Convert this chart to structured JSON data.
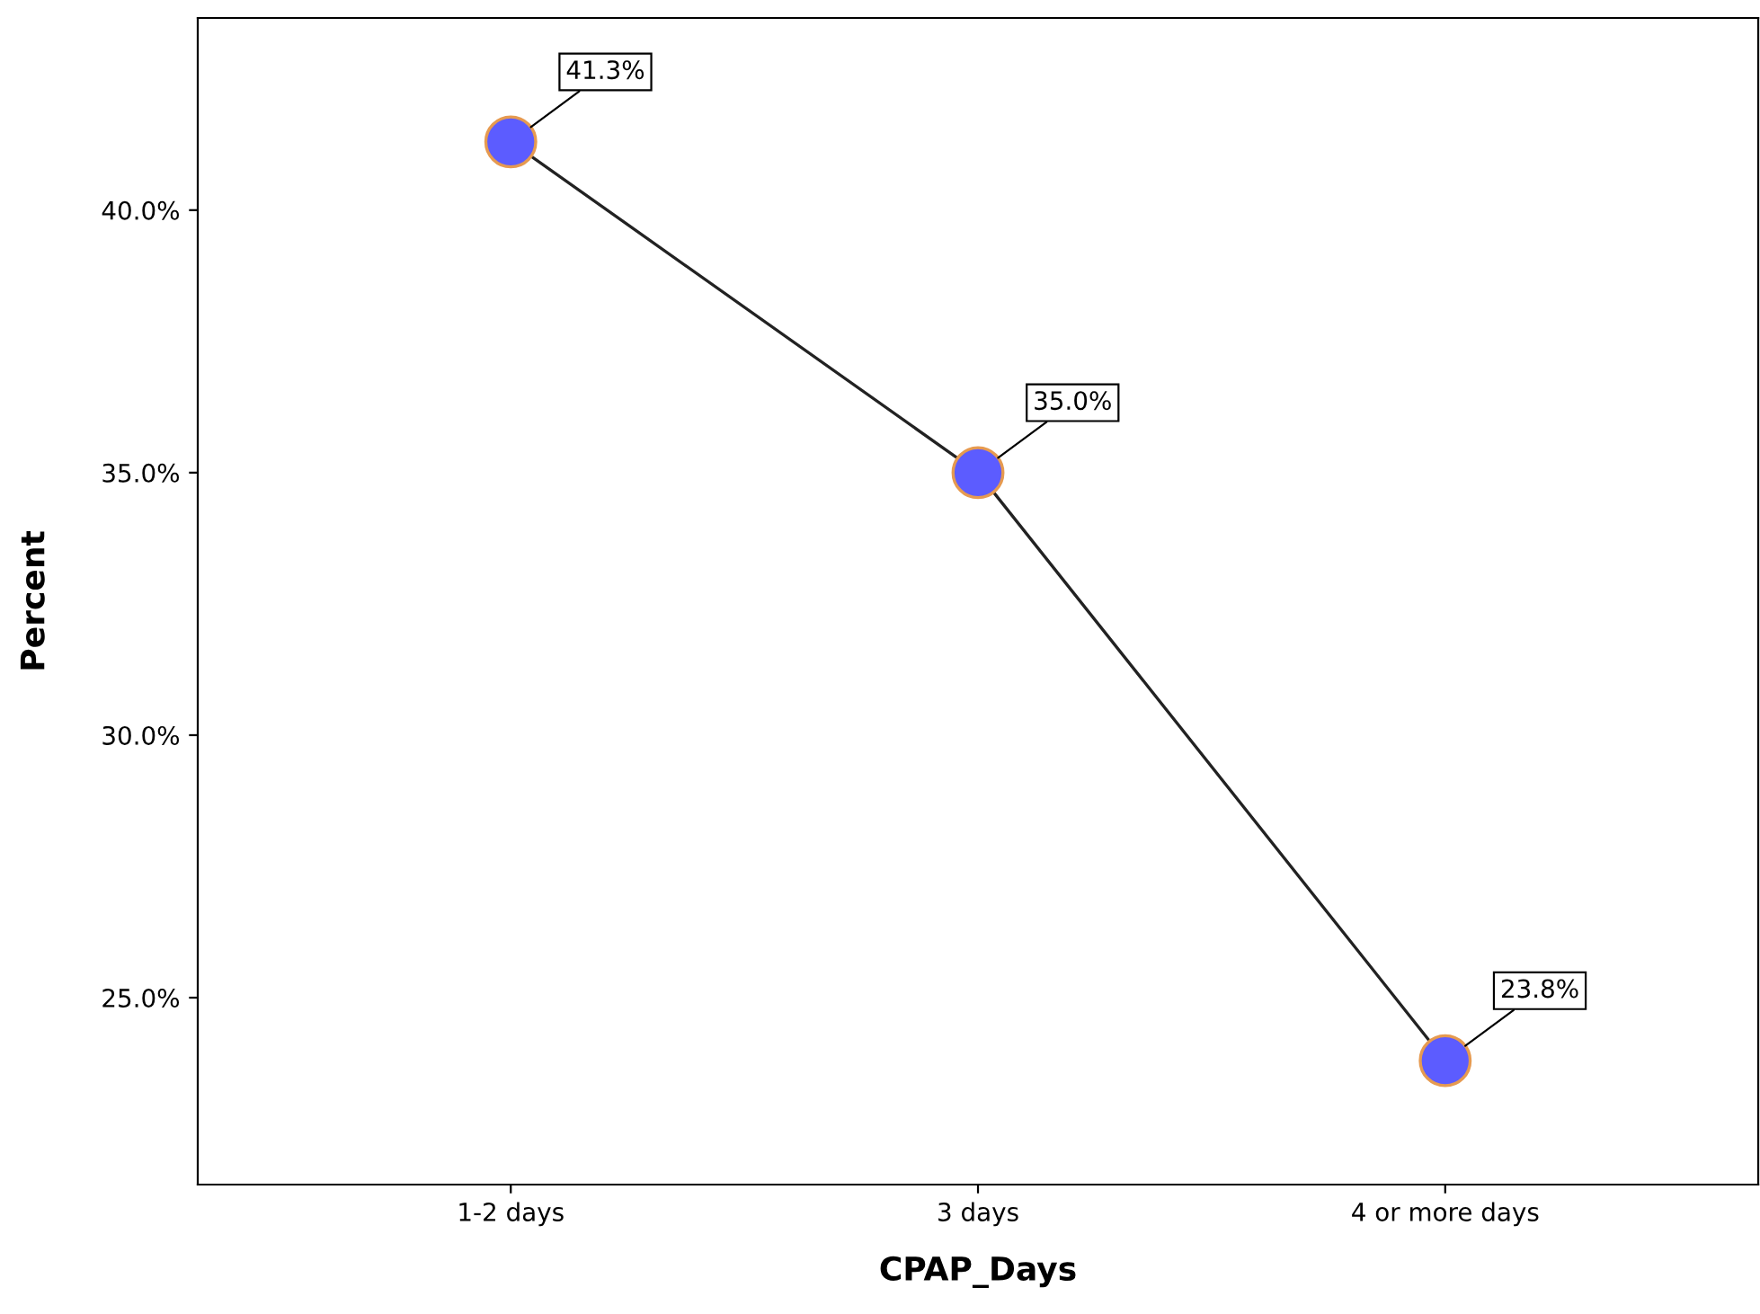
{
  "chart_data": {
    "type": "line",
    "xlabel": "CPAP_Days",
    "ylabel": "Percent",
    "categories": [
      "1-2 days",
      "3 days",
      "4 or more days"
    ],
    "series": [
      {
        "color": "#5c5cff",
        "values": [
          41.3,
          35.0,
          23.8
        ],
        "value_labels": [
          "41.3%",
          "35.0%",
          "23.8%"
        ]
      }
    ],
    "ylim": [
      21.44,
      43.66
    ],
    "yticks": [
      {
        "value": 25,
        "label": "25.0%"
      },
      {
        "value": 30,
        "label": "30.0%"
      },
      {
        "value": 35,
        "label": "35.0%"
      },
      {
        "value": 40,
        "label": "40.0%"
      }
    ],
    "marker": "circle",
    "line_style": "solid",
    "grid": false,
    "legend": false
  }
}
